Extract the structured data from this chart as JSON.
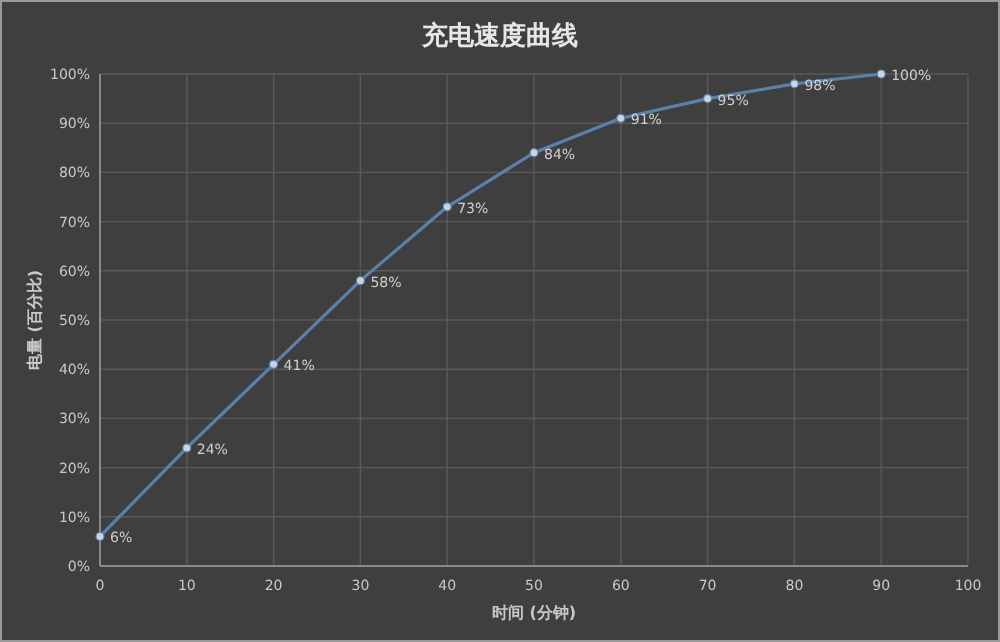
{
  "chart_data": {
    "type": "line",
    "title": "充电速度曲线",
    "xlabel": "时间 (分钟)",
    "ylabel": "电量 (百分比)",
    "x": [
      0,
      10,
      20,
      30,
      40,
      50,
      60,
      70,
      80,
      90
    ],
    "series": [
      {
        "color": "#5b80ac",
        "values": [
          6,
          24,
          41,
          58,
          73,
          84,
          91,
          95,
          98,
          100
        ],
        "value_labels": [
          "6%",
          "24%",
          "41%",
          "58%",
          "73%",
          "84%",
          "91%",
          "95%",
          "98%",
          "100%"
        ]
      }
    ],
    "xlim": [
      0,
      100
    ],
    "xticks": [
      0,
      10,
      20,
      30,
      40,
      50,
      60,
      70,
      80,
      90,
      100
    ],
    "ylim": [
      0,
      100
    ],
    "yticks": [
      {
        "value": 0,
        "label": "0%"
      },
      {
        "value": 10,
        "label": "10%"
      },
      {
        "value": 20,
        "label": "20%"
      },
      {
        "value": 30,
        "label": "30%"
      },
      {
        "value": 40,
        "label": "40%"
      },
      {
        "value": 50,
        "label": "50%"
      },
      {
        "value": 60,
        "label": "60%"
      },
      {
        "value": 70,
        "label": "70%"
      },
      {
        "value": 80,
        "label": "80%"
      },
      {
        "value": 90,
        "label": "90%"
      },
      {
        "value": 100,
        "label": "100%"
      }
    ],
    "grid": true,
    "marker": "circle",
    "line_style": "solid"
  }
}
